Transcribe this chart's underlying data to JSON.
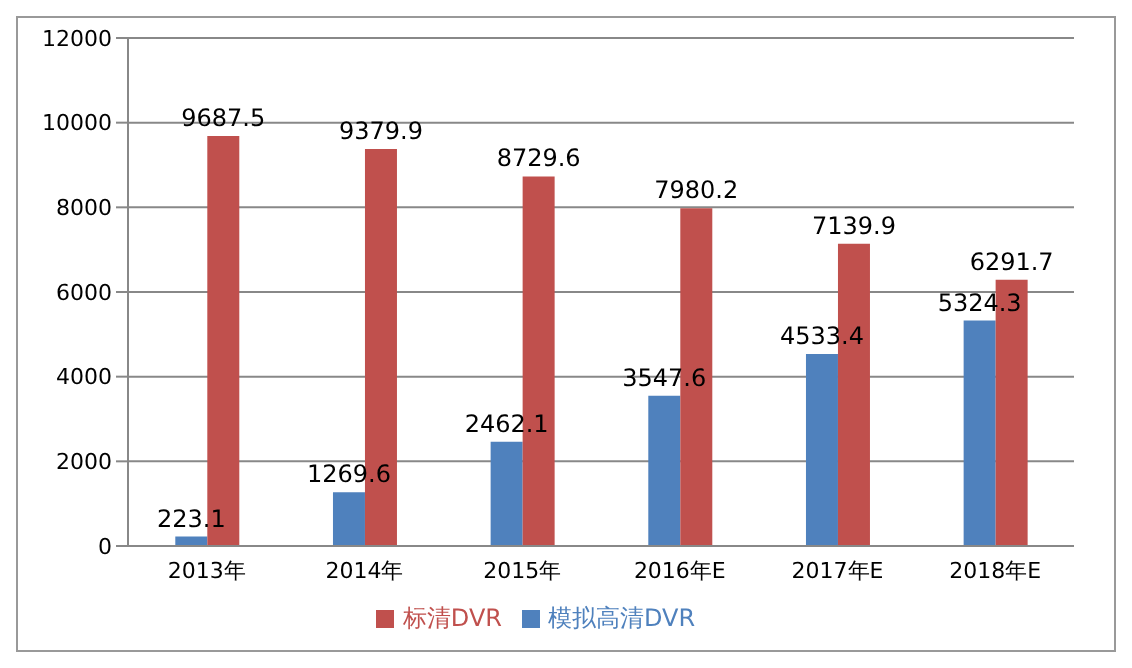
{
  "chart_data": {
    "type": "bar",
    "categories": [
      "2013年",
      "2014年",
      "2015年",
      "2016年E",
      "2017年E",
      "2018年E"
    ],
    "series": [
      {
        "name": "模拟高清DVR",
        "color": "#4f81bd",
        "values": [
          223.1,
          1269.6,
          2462.1,
          3547.6,
          4533.4,
          5324.3
        ]
      },
      {
        "name": "标清DVR",
        "color": "#c0504d",
        "values": [
          9687.5,
          9379.9,
          8729.6,
          7980.2,
          7139.9,
          6291.7
        ]
      }
    ],
    "ylim": [
      0,
      12000
    ],
    "yticks": [
      0,
      2000,
      4000,
      6000,
      8000,
      10000,
      12000
    ],
    "grid": "y",
    "legend": "bottom",
    "data_labels": true
  }
}
